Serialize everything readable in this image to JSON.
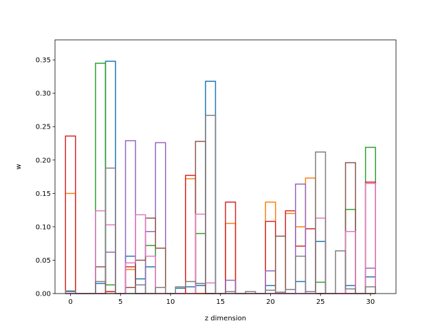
{
  "chart_data": {
    "type": "bar",
    "style": "step-histogram",
    "title": "",
    "xlabel": "z dimension",
    "ylabel": "w",
    "xlim": [
      -1.55,
      32.55
    ],
    "ylim": [
      0,
      0.38
    ],
    "xticks": [
      0,
      5,
      10,
      15,
      20,
      25,
      30
    ],
    "yticks": [
      0.0,
      0.05,
      0.1,
      0.15,
      0.2,
      0.25,
      0.3,
      0.35
    ],
    "ytick_labels": [
      "0.00",
      "0.05",
      "0.10",
      "0.15",
      "0.20",
      "0.25",
      "0.30",
      "0.35"
    ],
    "bin_width": 1,
    "grid": false,
    "legend": "none",
    "series": [
      {
        "color": "#1f77b4",
        "values": {
          "0": 0.003,
          "3": 0.015,
          "4": 0.348,
          "6": 0.056,
          "7": 0.022,
          "8": 0.04,
          "11": 0.008,
          "12": 0.01,
          "13": 0.012,
          "14": 0.318,
          "20": 0.012,
          "23": 0.018,
          "25": 0.078,
          "28": 0.012,
          "30": 0.025
        }
      },
      {
        "color": "#ff7f0e",
        "values": {
          "0": 0.15,
          "4": 0.003,
          "6": 0.036,
          "12": 0.172,
          "16": 0.105,
          "20": 0.137,
          "22": 0.12,
          "23": 0.1,
          "24": 0.173
        }
      },
      {
        "color": "#2ca02c",
        "values": {
          "3": 0.345,
          "4": 0.013,
          "8": 0.072,
          "13": 0.09,
          "25": 0.017,
          "28": 0.126,
          "30": 0.219
        }
      },
      {
        "color": "#d62728",
        "values": {
          "0": 0.236,
          "4": 0.003,
          "6": 0.04,
          "12": 0.177,
          "16": 0.137,
          "20": 0.108,
          "22": 0.124,
          "23": 0.071,
          "24": 0.097,
          "30": 0.167
        }
      },
      {
        "color": "#9467bd",
        "values": {
          "4": 0.062,
          "6": 0.229,
          "8": 0.093,
          "9": 0.226,
          "13": 0.015,
          "16": 0.02,
          "20": 0.034,
          "23": 0.164,
          "30": 0.038
        }
      },
      {
        "color": "#8c564b",
        "values": {
          "3": 0.04,
          "6": 0.009,
          "7": 0.05,
          "8": 0.113,
          "9": 0.068,
          "13": 0.228,
          "21": 0.086,
          "28": 0.196
        }
      },
      {
        "color": "#e377c2",
        "values": {
          "3": 0.124,
          "4": 0.103,
          "6": 0.046,
          "7": 0.118,
          "8": 0.056,
          "13": 0.119,
          "14": 0.016,
          "25": 0.113,
          "28": 0.093,
          "30": 0.165
        }
      },
      {
        "color": "#7f7f7f",
        "values": {
          "0": 0.004,
          "3": 0.018,
          "4": 0.188,
          "7": 0.013,
          "9": 0.009,
          "11": 0.01,
          "12": 0.018,
          "13": 0.015,
          "14": 0.267,
          "16": 0.003,
          "18": 0.003,
          "20": 0.005,
          "21": 0.002,
          "22": 0.006,
          "23": 0.056,
          "24": 0.003,
          "25": 0.212,
          "27": 0.064,
          "28": 0.007,
          "30": 0.01
        }
      }
    ]
  }
}
